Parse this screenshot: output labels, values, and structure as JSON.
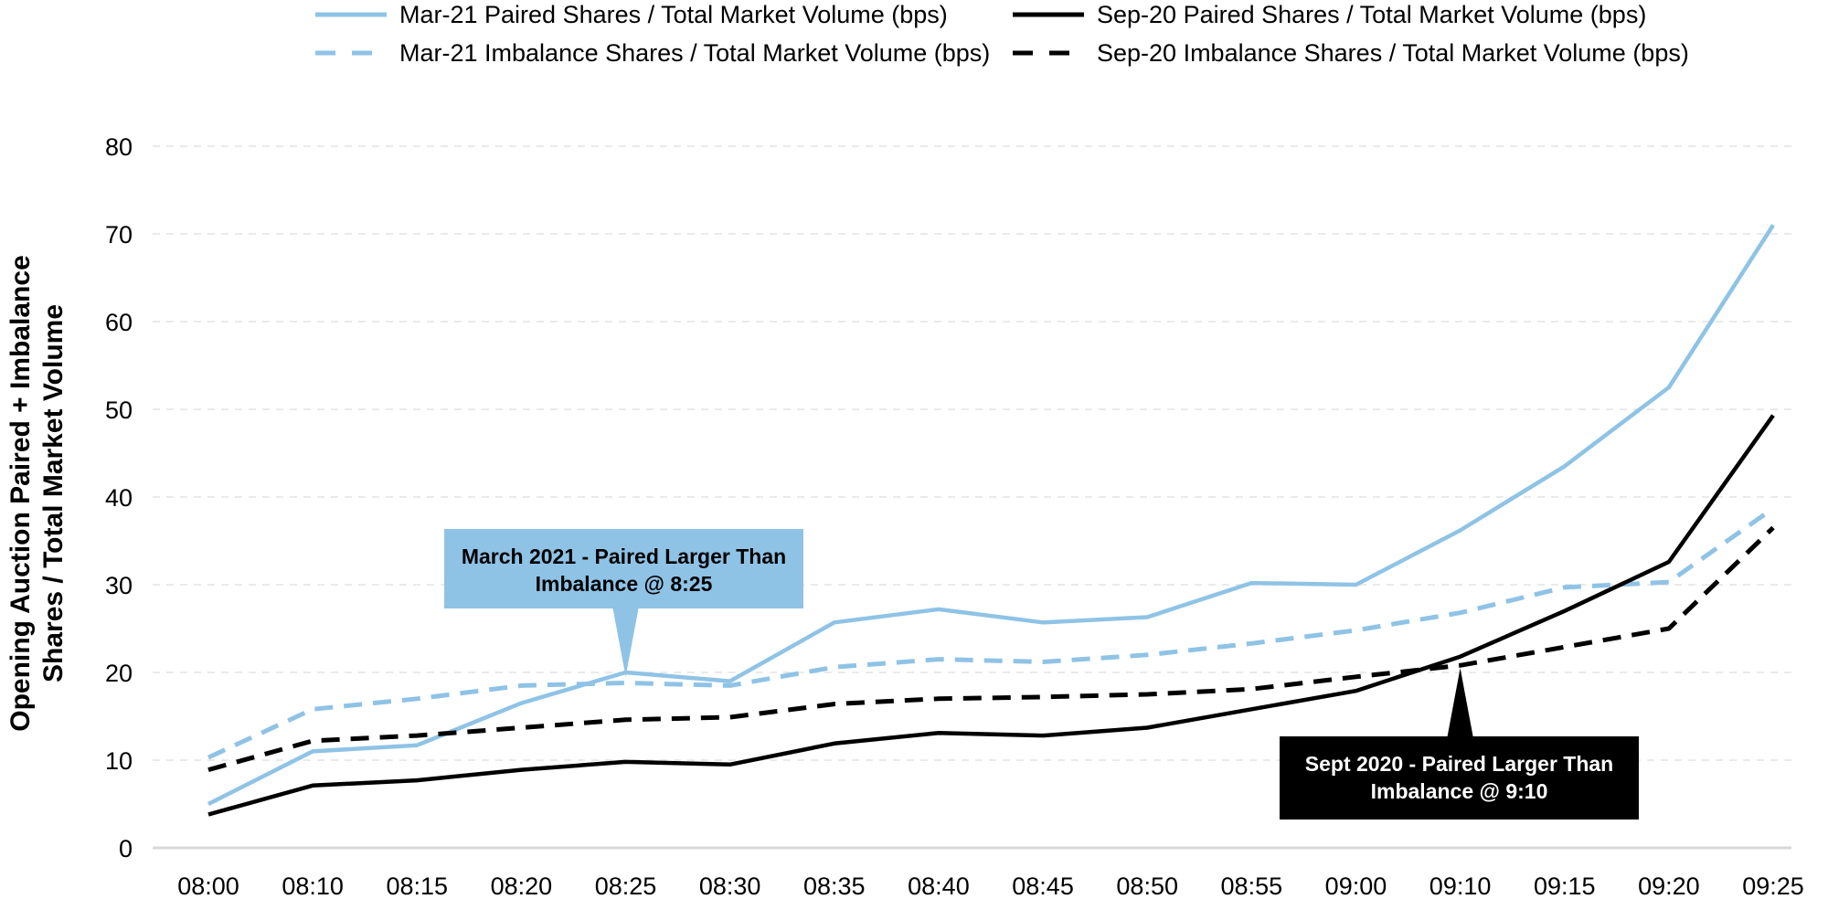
{
  "chart_data": {
    "type": "line",
    "title": "",
    "xlabel": "",
    "ylabel": [
      "Opening Auction Paired + Imbalance",
      "Shares / Total Market Volume"
    ],
    "categories": [
      "08:00",
      "08:10",
      "08:15",
      "08:20",
      "08:25",
      "08:30",
      "08:35",
      "08:40",
      "08:45",
      "08:50",
      "08:55",
      "09:00",
      "09:10",
      "09:15",
      "09:20",
      "09:25"
    ],
    "ylim": [
      0,
      80
    ],
    "yticks": [
      0,
      10,
      20,
      30,
      40,
      50,
      60,
      70,
      80
    ],
    "grid": "horizontal-dashed",
    "legend_position": "top",
    "series": [
      {
        "name": "Mar-21 Paired Shares / Total Market Volume (bps)",
        "color": "#8fc3e6",
        "style": "solid",
        "values": [
          5.0,
          11.0,
          11.7,
          16.5,
          20.0,
          19.0,
          25.7,
          27.2,
          25.7,
          26.3,
          30.2,
          30.0,
          36.2,
          43.5,
          52.5,
          71.0
        ]
      },
      {
        "name": "Mar-21 Imbalance Shares / Total Market Volume (bps)",
        "color": "#8fc3e6",
        "style": "dashed",
        "values": [
          10.3,
          15.8,
          17.0,
          18.5,
          18.8,
          18.5,
          20.6,
          21.5,
          21.2,
          22.0,
          23.3,
          24.8,
          26.8,
          29.7,
          30.3,
          38.7
        ]
      },
      {
        "name": "Sep-20 Paired Shares / Total Market Volume (bps)",
        "color": "#000000",
        "style": "solid",
        "values": [
          3.8,
          7.1,
          7.7,
          8.9,
          9.8,
          9.5,
          11.9,
          13.1,
          12.8,
          13.7,
          15.8,
          17.9,
          21.8,
          27.0,
          32.6,
          49.3
        ]
      },
      {
        "name": "Sep-20 Imbalance Shares / Total Market Volume (bps)",
        "color": "#000000",
        "style": "dashed",
        "values": [
          8.9,
          12.2,
          12.8,
          13.7,
          14.6,
          14.9,
          16.4,
          17.0,
          17.2,
          17.5,
          18.1,
          19.5,
          20.8,
          22.9,
          25.0,
          36.5
        ]
      }
    ],
    "annotations": [
      {
        "text": [
          "March 2021 - Paired Larger Than",
          "Imbalance @ 8:25"
        ],
        "target_category": "08:25",
        "target_value": 19.5,
        "background": "#8fc3e6",
        "text_color": "#000000"
      },
      {
        "text": [
          "Sept 2020 - Paired Larger Than",
          "Imbalance @ 9:10"
        ],
        "target_category": "09:10",
        "target_value": 20.5,
        "background": "#000000",
        "text_color": "#ffffff"
      }
    ]
  }
}
